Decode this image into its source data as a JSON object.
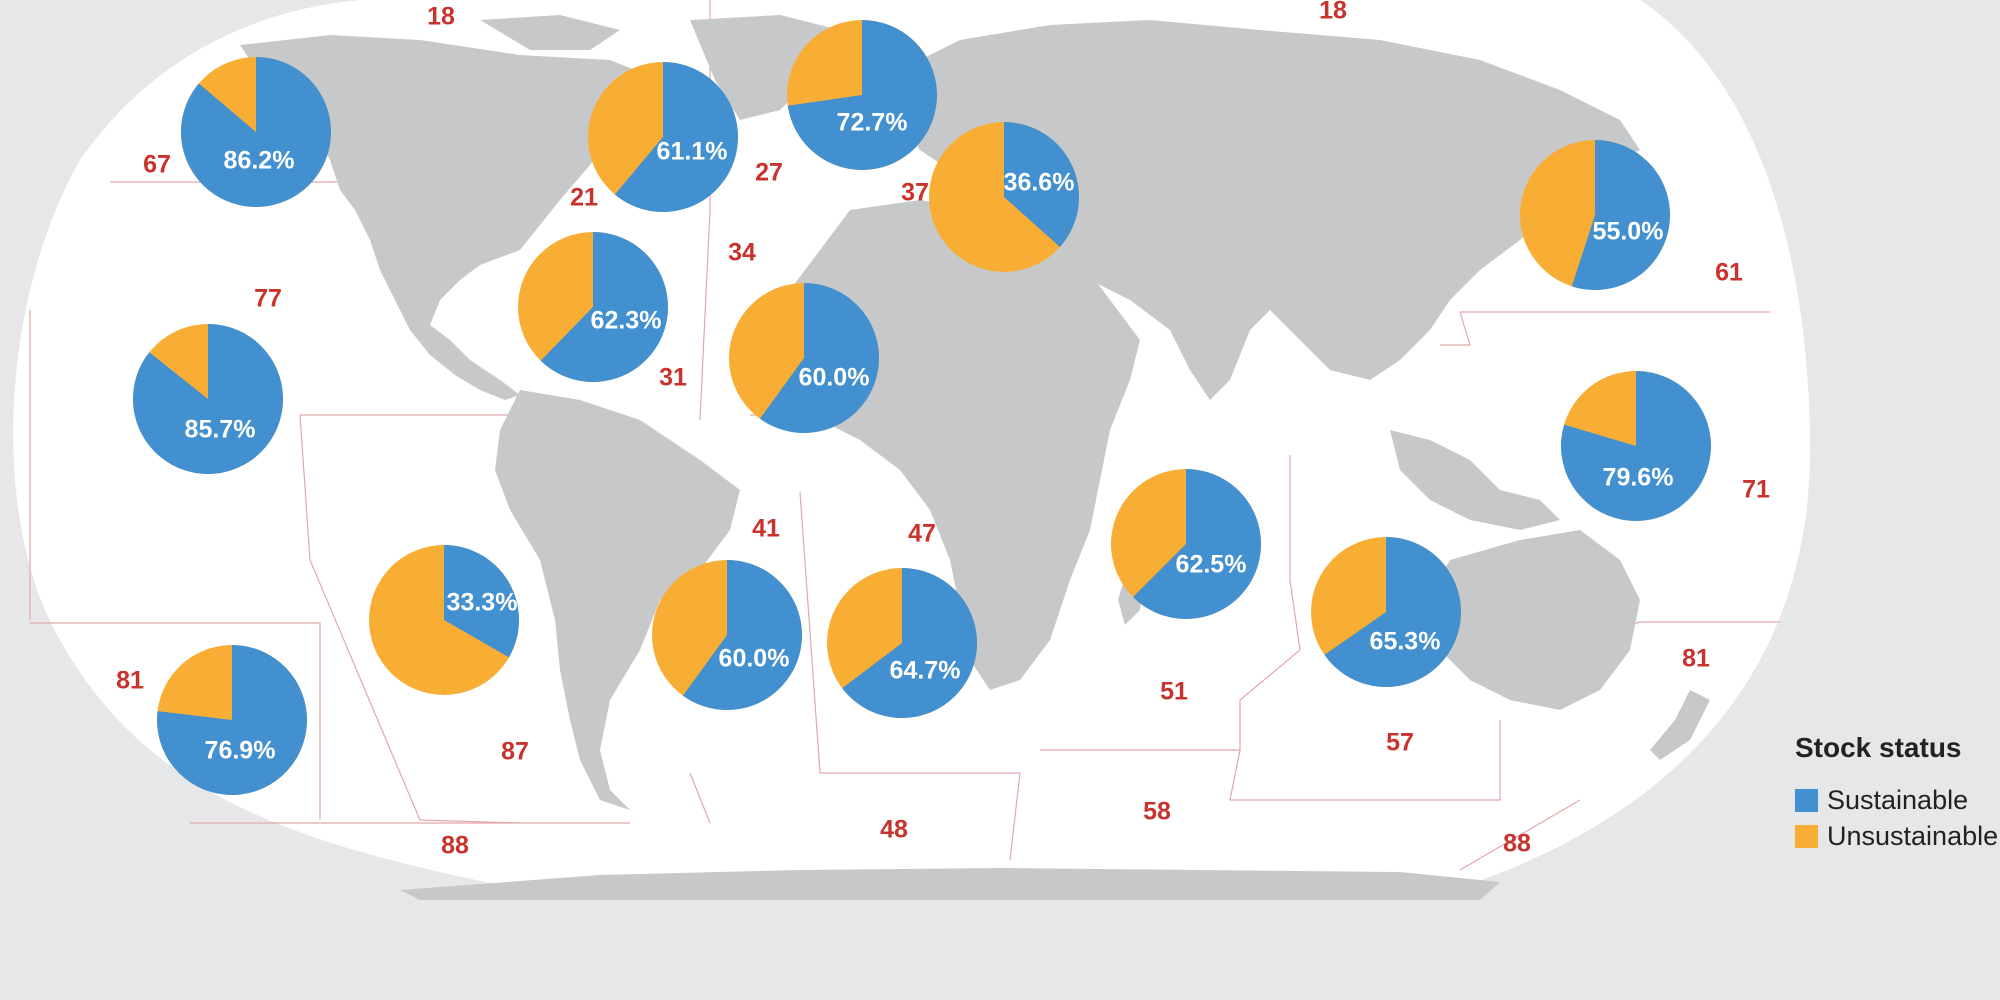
{
  "colors": {
    "sustainable": "#4290cf",
    "unsustainable": "#f8ae34",
    "area_label": "#c8332e",
    "land": "#c7c8ca",
    "ocean": "#ffffff",
    "background": "#e6e7e9"
  },
  "legend": {
    "title": "Stock status",
    "items": [
      {
        "label": "Sustainable",
        "color": "#4290cf"
      },
      {
        "label": "Unsustainable",
        "color": "#f8ae34"
      }
    ]
  },
  "area_labels": [
    "18",
    "18",
    "67",
    "21",
    "27",
    "37",
    "61",
    "77",
    "34",
    "31",
    "71",
    "41",
    "47",
    "81",
    "51",
    "81",
    "87",
    "57",
    "48",
    "58",
    "88",
    "88"
  ],
  "chart_data": {
    "type": "pie",
    "series": [
      {
        "name": "Sustainable"
      },
      {
        "name": "Unsustainable"
      }
    ],
    "pies": [
      {
        "area": "67",
        "sustainable_pct": 86.2,
        "label": "86.2%"
      },
      {
        "area": "21",
        "sustainable_pct": 61.1,
        "label": "61.1%"
      },
      {
        "area": "27",
        "sustainable_pct": 72.7,
        "label": "72.7%"
      },
      {
        "area": "37",
        "sustainable_pct": 36.6,
        "label": "36.6%"
      },
      {
        "area": "61",
        "sustainable_pct": 55.0,
        "label": "55.0%"
      },
      {
        "area": "31",
        "sustainable_pct": 62.3,
        "label": "62.3%"
      },
      {
        "area": "34",
        "sustainable_pct": 60.0,
        "label": "60.0%"
      },
      {
        "area": "77",
        "sustainable_pct": 85.7,
        "label": "85.7%"
      },
      {
        "area": "71",
        "sustainable_pct": 79.6,
        "label": "79.6%"
      },
      {
        "area": "51",
        "sustainable_pct": 62.5,
        "label": "62.5%"
      },
      {
        "area": "87",
        "sustainable_pct": 33.3,
        "label": "33.3%"
      },
      {
        "area": "41",
        "sustainable_pct": 60.0,
        "label": "60.0%"
      },
      {
        "area": "47",
        "sustainable_pct": 64.7,
        "label": "64.7%"
      },
      {
        "area": "57",
        "sustainable_pct": 65.3,
        "label": "65.3%"
      },
      {
        "area": "81",
        "sustainable_pct": 76.9,
        "label": "76.9%"
      }
    ]
  }
}
